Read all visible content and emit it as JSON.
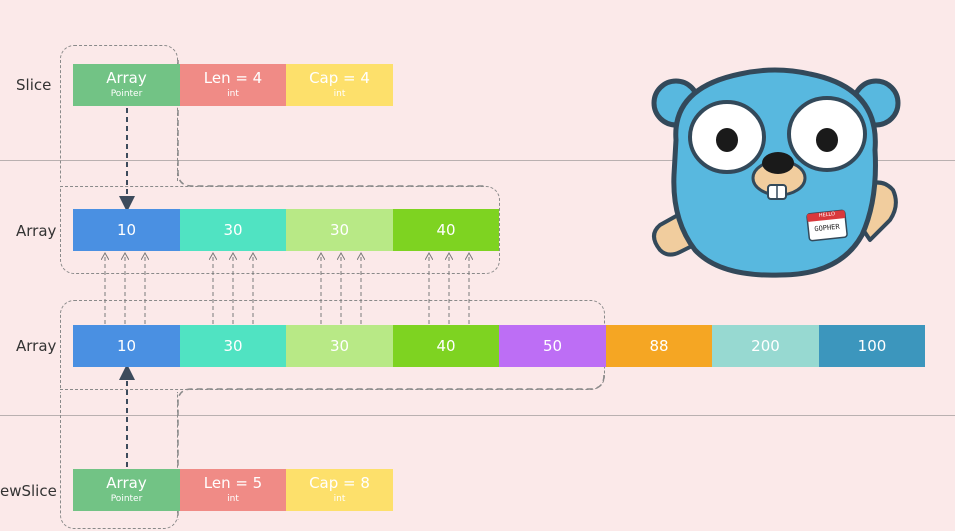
{
  "rows": {
    "slice": "Slice",
    "array1": "Array",
    "array2": "Array",
    "newslice": "ewSlice"
  },
  "slice": {
    "array": {
      "label": "Array",
      "sub": "Pointer"
    },
    "len": {
      "label": "Len = 4",
      "sub": "int"
    },
    "cap": {
      "label": "Cap = 4",
      "sub": "int"
    }
  },
  "array1": [
    "10",
    "30",
    "30",
    "40"
  ],
  "array2": [
    "10",
    "30",
    "30",
    "40",
    "50",
    "88",
    "200",
    "100"
  ],
  "newslice": {
    "array": {
      "label": "Array",
      "sub": "Pointer"
    },
    "len": {
      "label": "Len = 5",
      "sub": "int"
    },
    "cap": {
      "label": "Cap = 8",
      "sub": "int"
    }
  },
  "gopher": {
    "badge_top": "HELLO",
    "badge_name": "GOPHER"
  },
  "colors": {
    "pointer": "#72c385",
    "len": "#f08b86",
    "cap": "#fde06b",
    "c10": "#4a90e2",
    "c30a": "#50e3c2",
    "c30b": "#b8e986",
    "c40": "#7ed321",
    "c50": "#bd6ef5",
    "c88": "#f5a623",
    "c200": "#97d9d1",
    "c100": "#3c96bd",
    "gopher": "#58b8df"
  }
}
